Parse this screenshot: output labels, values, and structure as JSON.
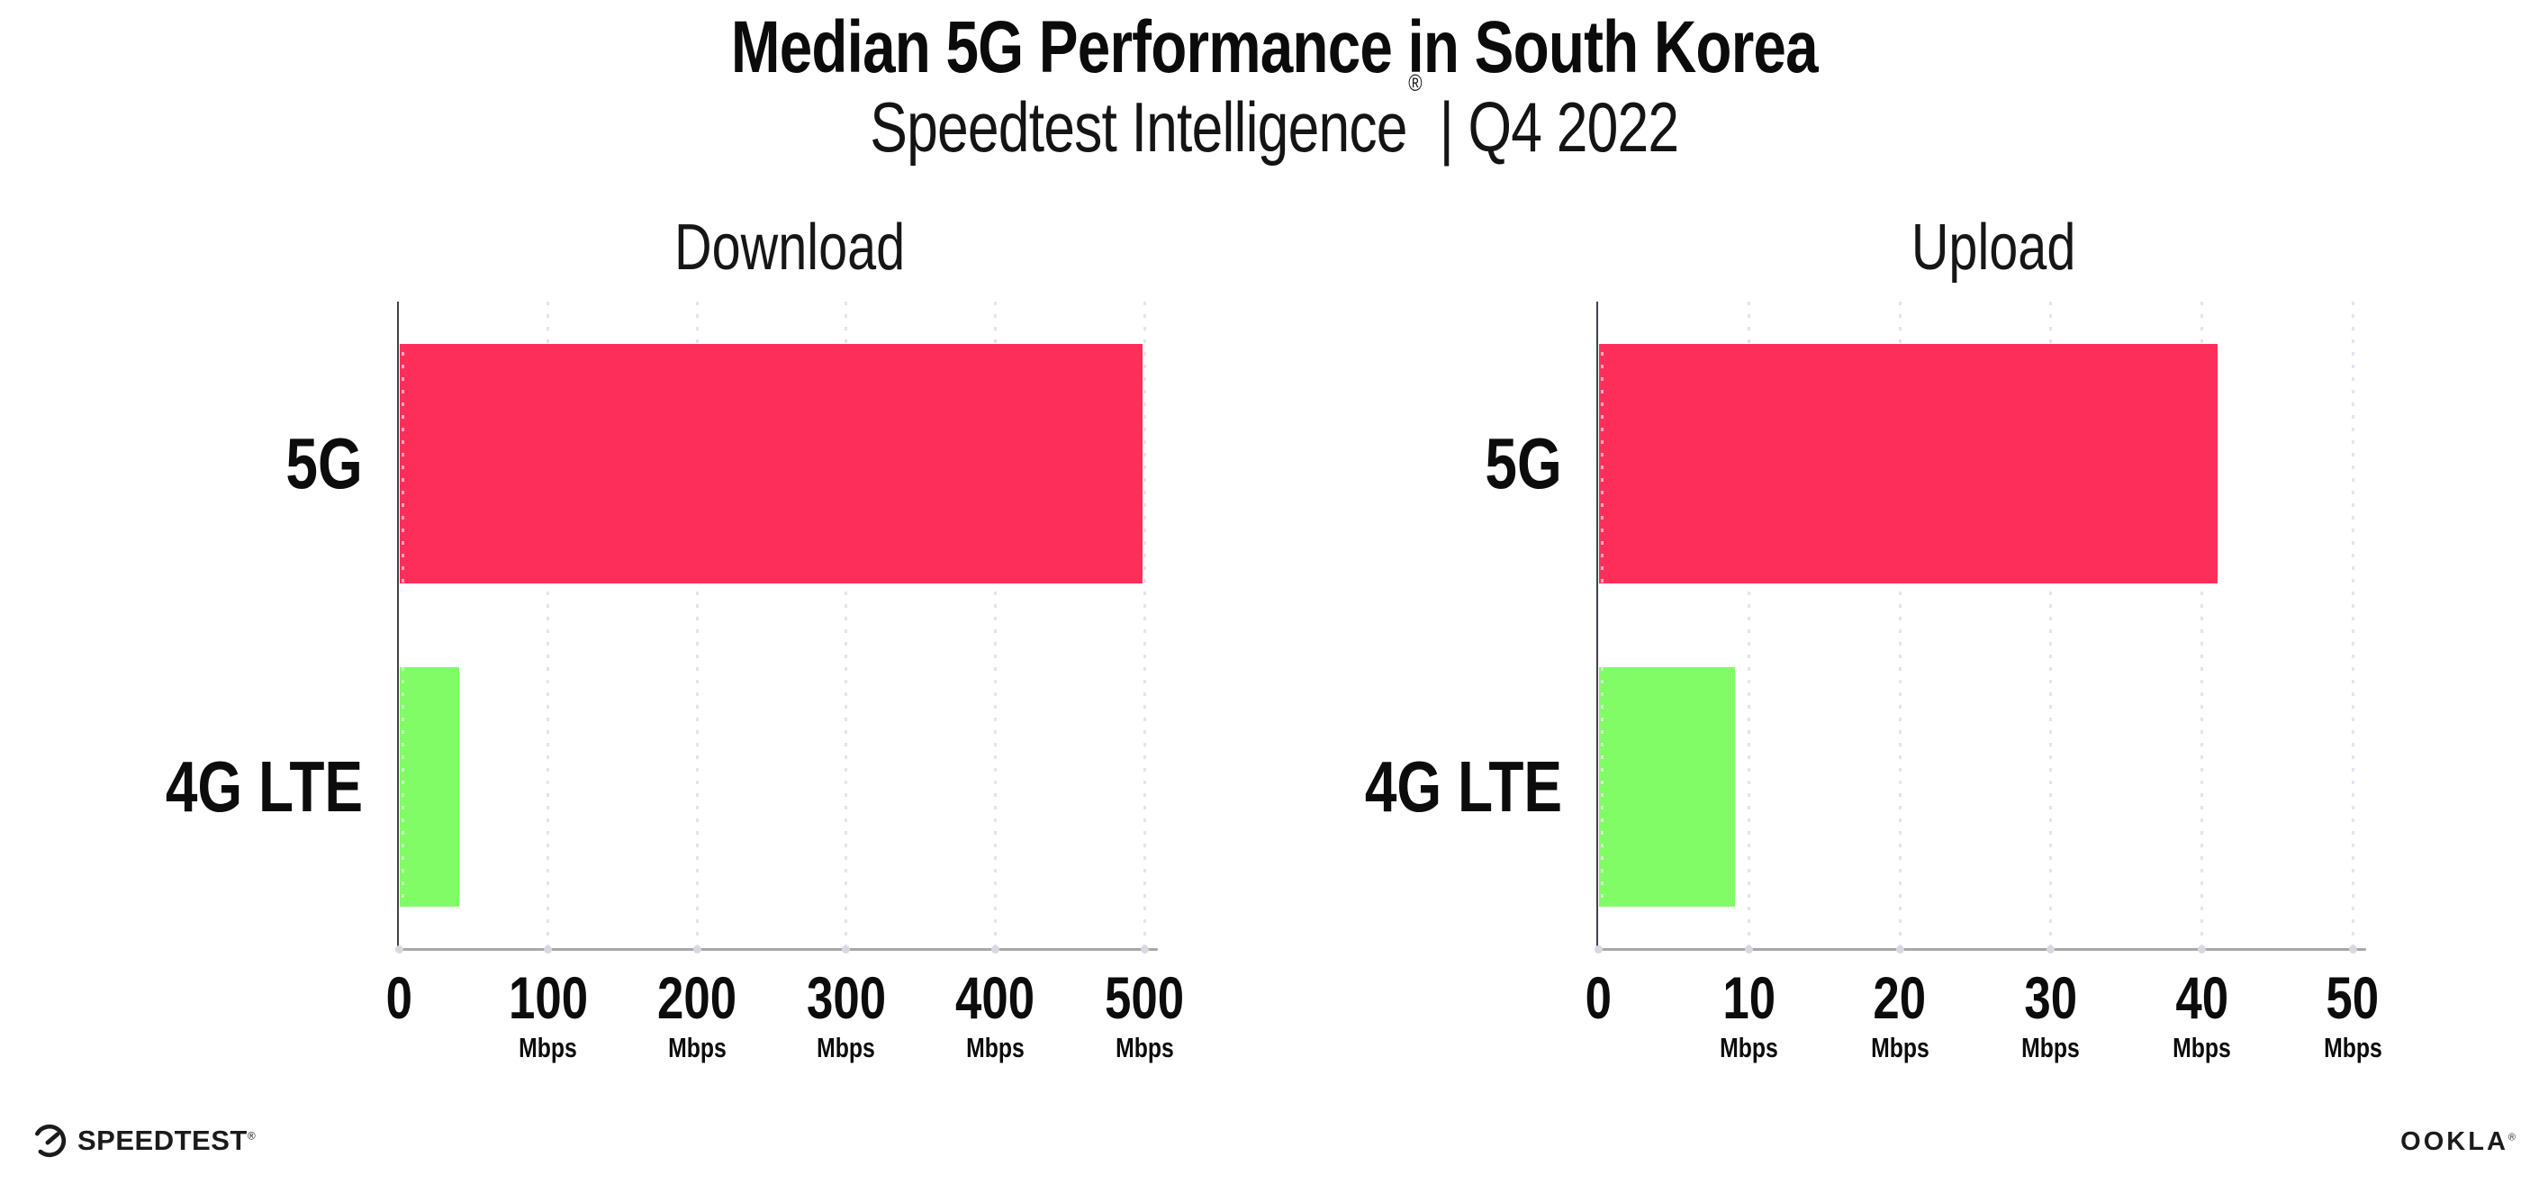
{
  "header": {
    "title": "Median 5G Performance in South Korea",
    "subtitle_brand": "Speedtest Intelligence",
    "subtitle_reg": "®",
    "subtitle_rest": " | Q4 2022"
  },
  "chart_data": [
    {
      "type": "bar",
      "orientation": "horizontal",
      "title": "Download",
      "categories": [
        "5G",
        "4G LTE"
      ],
      "values": [
        498,
        40
      ],
      "unit": "Mbps",
      "xlim": [
        0,
        500
      ],
      "xticks": [
        0,
        100,
        200,
        300,
        400,
        500
      ],
      "xtick_unit": "Mbps",
      "bar_colors": [
        "#FE2E5A",
        "#81FB66"
      ],
      "grid": "vertical-dotted",
      "legend": "none"
    },
    {
      "type": "bar",
      "orientation": "horizontal",
      "title": "Upload",
      "categories": [
        "5G",
        "4G LTE"
      ],
      "values": [
        41,
        9
      ],
      "unit": "Mbps",
      "xlim": [
        0,
        50
      ],
      "xticks": [
        0,
        10,
        20,
        30,
        40,
        50
      ],
      "xtick_unit": "Mbps",
      "bar_colors": [
        "#FE2E5A",
        "#81FB66"
      ],
      "grid": "vertical-dotted",
      "legend": "none"
    }
  ],
  "footer": {
    "speedtest": "SPEEDTEST",
    "speedtest_reg": "®",
    "ookla": "OOKLA",
    "ookla_reg": "®"
  },
  "colors": {
    "bar_5g": "#FE2E5A",
    "bar_4g_lte": "#81FB66",
    "grid_dot": "#E4E4EC",
    "x_axis_line": "#A8A8A8",
    "y_axis_line": "#41414B",
    "text": "#0C0C0C"
  }
}
